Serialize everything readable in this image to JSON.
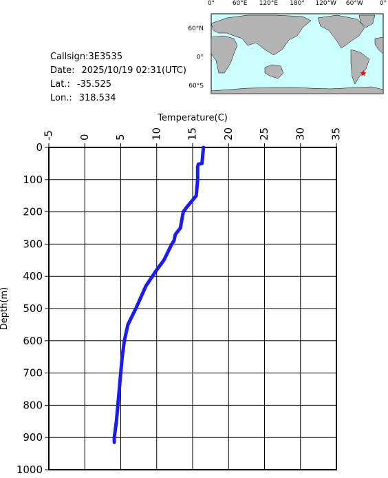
{
  "station": {
    "callsign": "Callsign:3E3535",
    "date_label": "Date:",
    "date": "2025/10/19 02:31(UTC)",
    "lat_label": "Lat.:",
    "lat": -35.525,
    "lon_label": "Lon.:",
    "lon": 318.534
  },
  "map": {
    "lon_labels": [
      "0°",
      "60°E",
      "120°E",
      "180°",
      "120°W",
      "60°W",
      "0°"
    ],
    "lat_labels": [
      "60°N",
      "0°",
      "60°S"
    ]
  },
  "chart_data": {
    "type": "line",
    "x_label": "Temperature(C)",
    "y_label": "Depth(m)",
    "xlim": [
      -5,
      35
    ],
    "xticks": [
      -5,
      0,
      5,
      10,
      15,
      20,
      25,
      30,
      35
    ],
    "ylim": [
      0,
      1000
    ],
    "yticks": [
      0,
      100,
      200,
      300,
      400,
      500,
      600,
      700,
      800,
      900,
      1000
    ],
    "y_inverted": true,
    "grid": true,
    "depth": [
      0,
      50,
      52,
      60,
      100,
      150,
      185,
      200,
      250,
      270,
      290,
      300,
      350,
      380,
      400,
      430,
      460,
      500,
      550,
      600,
      650,
      700,
      750,
      800,
      850,
      900,
      915
    ],
    "series": [
      {
        "color": "#1a1aff",
        "values": [
          16.5,
          16.3,
          15.8,
          15.7,
          15.7,
          15.5,
          14.2,
          13.7,
          13.3,
          12.6,
          12.4,
          12.1,
          11.0,
          10.0,
          9.4,
          8.5,
          7.9,
          7.1,
          6.0,
          5.5,
          5.2,
          5.0,
          4.8,
          4.6,
          4.4,
          4.1,
          4.1
        ]
      }
    ]
  }
}
